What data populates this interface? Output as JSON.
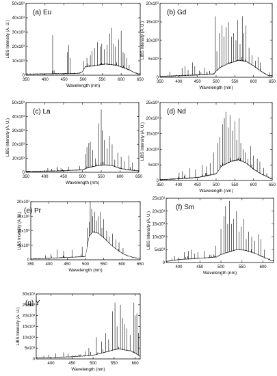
{
  "chart_data": [
    {
      "type": "line",
      "title": "(a) Eu",
      "xlabel": "Wavelength (nm)",
      "ylabel": "LIBS Intensity (A. U.)",
      "xlim": [
        350,
        650
      ],
      "ylim": [
        0,
        50000
      ],
      "xticks": [
        350,
        400,
        450,
        500,
        550,
        600,
        650
      ],
      "xtick_labels": [
        "350",
        "400",
        "450",
        "500",
        "550",
        "600",
        "650"
      ],
      "yticks": [
        0,
        10000,
        20000,
        30000,
        40000,
        50000
      ],
      "ytick_labels": [
        "0",
        "10x10³",
        "20x10³",
        "30x10³",
        "40x10³",
        "50x10³"
      ],
      "baseline": [
        [
          350,
          500
        ],
        [
          400,
          600
        ],
        [
          450,
          800
        ],
        [
          490,
          1000
        ],
        [
          500,
          2500
        ],
        [
          505,
          5500
        ],
        [
          520,
          6000
        ],
        [
          560,
          7500
        ],
        [
          590,
          6500
        ],
        [
          620,
          3500
        ],
        [
          635,
          1500
        ],
        [
          645,
          500
        ]
      ],
      "peaks": [
        [
          420,
          28000
        ],
        [
          459,
          16000
        ],
        [
          462,
          21000
        ],
        [
          466,
          12000
        ],
        [
          501,
          10000
        ],
        [
          510,
          12000
        ],
        [
          519,
          14000
        ],
        [
          523,
          17000
        ],
        [
          530,
          19000
        ],
        [
          538,
          23000
        ],
        [
          545,
          20000
        ],
        [
          549,
          22000
        ],
        [
          556,
          18000
        ],
        [
          563,
          21000
        ],
        [
          570,
          29000
        ],
        [
          575,
          33000
        ],
        [
          580,
          22000
        ],
        [
          585,
          20000
        ],
        [
          593,
          25000
        ],
        [
          600,
          31000
        ],
        [
          605,
          16000
        ],
        [
          610,
          15000
        ],
        [
          615,
          12000
        ],
        [
          621,
          7000
        ]
      ]
    },
    {
      "type": "line",
      "title": "(b) Gd",
      "xlabel": "Wavelength (nm)",
      "ylabel": "LIBS Intensity (A. U.)",
      "xlim": [
        350,
        650
      ],
      "ylim": [
        0,
        20000
      ],
      "xticks": [
        350,
        400,
        450,
        500,
        550,
        600,
        650
      ],
      "xtick_labels": [
        "350",
        "400",
        "450",
        "500",
        "550",
        "600",
        "650"
      ],
      "yticks": [
        0,
        5000,
        10000,
        15000,
        20000
      ],
      "ytick_labels": [
        "0",
        "5x10³",
        "10x10³",
        "15x10³",
        "20x10³"
      ],
      "baseline": [
        [
          350,
          100
        ],
        [
          400,
          300
        ],
        [
          450,
          500
        ],
        [
          495,
          800
        ],
        [
          500,
          1500
        ],
        [
          510,
          2500
        ],
        [
          530,
          3500
        ],
        [
          560,
          4500
        ],
        [
          580,
          4200
        ],
        [
          600,
          3000
        ],
        [
          620,
          1500
        ],
        [
          640,
          300
        ]
      ],
      "peaks": [
        [
          376,
          1500
        ],
        [
          409,
          2500
        ],
        [
          417,
          3000
        ],
        [
          425,
          2000
        ],
        [
          437,
          4000
        ],
        [
          443,
          3000
        ],
        [
          455,
          1800
        ],
        [
          468,
          2500
        ],
        [
          498,
          16500
        ],
        [
          502,
          7000
        ],
        [
          509,
          12000
        ],
        [
          516,
          14000
        ],
        [
          521,
          11000
        ],
        [
          527,
          13500
        ],
        [
          533,
          15000
        ],
        [
          541,
          11000
        ],
        [
          547,
          12000
        ],
        [
          553,
          10000
        ],
        [
          558,
          15500
        ],
        [
          564,
          9000
        ],
        [
          570,
          16500
        ],
        [
          574,
          12000
        ],
        [
          580,
          14000
        ],
        [
          588,
          8000
        ],
        [
          596,
          6000
        ],
        [
          605,
          4500
        ],
        [
          612,
          5500
        ],
        [
          618,
          4000
        ]
      ]
    },
    {
      "type": "line",
      "title": "(c) La",
      "xlabel": "Wavelength (nm)",
      "ylabel": "LIBS Intensity (A. U.)",
      "xlim": [
        350,
        650
      ],
      "ylim": [
        0,
        50000
      ],
      "xticks": [
        350,
        400,
        450,
        500,
        550,
        600,
        650
      ],
      "xtick_labels": [
        "350",
        "400",
        "450",
        "500",
        "550",
        "600",
        "650"
      ],
      "yticks": [
        0,
        10000,
        20000,
        30000,
        40000,
        50000
      ],
      "ytick_labels": [
        "0",
        "10x10³",
        "20x10³",
        "30x10³",
        "40x10³",
        "50x10³"
      ],
      "baseline": [
        [
          350,
          300
        ],
        [
          400,
          500
        ],
        [
          450,
          800
        ],
        [
          500,
          1500
        ],
        [
          515,
          3000
        ],
        [
          540,
          4500
        ],
        [
          560,
          5000
        ],
        [
          580,
          4500
        ],
        [
          600,
          2500
        ],
        [
          620,
          1500
        ],
        [
          645,
          800
        ]
      ],
      "peaks": [
        [
          408,
          3000
        ],
        [
          418,
          2500
        ],
        [
          433,
          4000
        ],
        [
          443,
          3000
        ],
        [
          463,
          4000
        ],
        [
          493,
          4500
        ],
        [
          507,
          13000
        ],
        [
          512,
          18000
        ],
        [
          517,
          21000
        ],
        [
          521,
          22000
        ],
        [
          527,
          16000
        ],
        [
          535,
          10000
        ],
        [
          544,
          35000
        ],
        [
          550,
          45000
        ],
        [
          553,
          30000
        ],
        [
          558,
          23000
        ],
        [
          566,
          17000
        ],
        [
          572,
          26000
        ],
        [
          579,
          20000
        ],
        [
          586,
          9000
        ],
        [
          594,
          14000
        ],
        [
          603,
          11000
        ],
        [
          611,
          8000
        ],
        [
          624,
          12000
        ],
        [
          633,
          7000
        ]
      ]
    },
    {
      "type": "line",
      "title": "(d) Nd",
      "xlabel": "Wavelength (nm)",
      "ylabel": "LIBS Intensity (A. U.)",
      "xlim": [
        350,
        650
      ],
      "ylim": [
        0,
        25000
      ],
      "xticks": [
        350,
        400,
        450,
        500,
        550,
        600,
        650
      ],
      "xtick_labels": [
        "350",
        "400",
        "450",
        "500",
        "550",
        "600",
        "650"
      ],
      "yticks": [
        0,
        5000,
        10000,
        15000,
        20000,
        25000
      ],
      "ytick_labels": [
        "0",
        "5x10³",
        "10x10³",
        "15x10³",
        "20x10³",
        "25x10³"
      ],
      "baseline": [
        [
          350,
          100
        ],
        [
          400,
          400
        ],
        [
          450,
          800
        ],
        [
          500,
          2000
        ],
        [
          515,
          4500
        ],
        [
          540,
          6000
        ],
        [
          560,
          6500
        ],
        [
          580,
          5500
        ],
        [
          600,
          3500
        ],
        [
          620,
          2000
        ],
        [
          645,
          600
        ]
      ],
      "peaks": [
        [
          401,
          2500
        ],
        [
          410,
          3000
        ],
        [
          417,
          2000
        ],
        [
          430,
          4000
        ],
        [
          445,
          3500
        ],
        [
          463,
          5000
        ],
        [
          474,
          4500
        ],
        [
          484,
          5500
        ],
        [
          493,
          9000
        ],
        [
          505,
          12000
        ],
        [
          510,
          14000
        ],
        [
          517,
          18000
        ],
        [
          522,
          20000
        ],
        [
          526,
          22000
        ],
        [
          532,
          17000
        ],
        [
          537,
          21000
        ],
        [
          544,
          16000
        ],
        [
          550,
          19000
        ],
        [
          555,
          13000
        ],
        [
          561,
          20000
        ],
        [
          566,
          12000
        ],
        [
          572,
          10000
        ],
        [
          578,
          9000
        ],
        [
          585,
          7000
        ],
        [
          592,
          11000
        ],
        [
          600,
          8000
        ],
        [
          610,
          7000
        ],
        [
          617,
          6000
        ],
        [
          627,
          4000
        ]
      ]
    },
    {
      "type": "line",
      "title": "(e) Pr",
      "xlabel": "Wavelength (nm)",
      "ylabel": "LIBS Intensity (A. U.)",
      "xlim": [
        350,
        650
      ],
      "ylim": [
        0,
        20000
      ],
      "xticks": [
        350,
        400,
        450,
        500,
        550,
        600,
        650
      ],
      "xtick_labels": [
        "350",
        "400",
        "450",
        "500",
        "550",
        "600",
        "650"
      ],
      "yticks": [
        0,
        5000,
        10000,
        15000,
        20000
      ],
      "ytick_labels": [
        "0",
        "5x10³",
        "10x10³",
        "15x10³",
        "20x10³"
      ],
      "baseline": [
        [
          350,
          200
        ],
        [
          400,
          400
        ],
        [
          450,
          700
        ],
        [
          500,
          1000
        ],
        [
          510,
          8000
        ],
        [
          520,
          9500
        ],
        [
          535,
          9000
        ],
        [
          550,
          7500
        ],
        [
          570,
          5000
        ],
        [
          590,
          3000
        ],
        [
          610,
          1500
        ],
        [
          630,
          700
        ],
        [
          645,
          400
        ]
      ],
      "peaks": [
        [
          390,
          1500
        ],
        [
          405,
          2000
        ],
        [
          422,
          3500
        ],
        [
          440,
          3000
        ],
        [
          463,
          3500
        ],
        [
          491,
          4500
        ],
        [
          505,
          11000
        ],
        [
          510,
          13000
        ],
        [
          513,
          20000
        ],
        [
          517,
          17500
        ],
        [
          520,
          15000
        ],
        [
          525,
          16500
        ],
        [
          530,
          13500
        ],
        [
          535,
          15000
        ],
        [
          540,
          16500
        ],
        [
          545,
          11000
        ],
        [
          550,
          14000
        ],
        [
          558,
          10000
        ],
        [
          565,
          8000
        ],
        [
          574,
          9000
        ],
        [
          583,
          7000
        ],
        [
          592,
          6000
        ],
        [
          603,
          4000
        ]
      ]
    },
    {
      "type": "line",
      "title": "(f) Sm",
      "xlabel": "Wavelength (nm)",
      "ylabel": "LIBS Intensity (A. U.)",
      "xlim": [
        370,
        625
      ],
      "ylim": [
        0,
        25000
      ],
      "xticks": [
        400,
        450,
        500,
        550,
        600
      ],
      "xtick_labels": [
        "400",
        "450",
        "500",
        "550",
        "600"
      ],
      "yticks": [
        0,
        5000,
        10000,
        15000,
        20000,
        25000
      ],
      "ytick_labels": [
        "0",
        "5x10³",
        "10x10³",
        "15x10³",
        "20x10³",
        "25x10³"
      ],
      "baseline": [
        [
          370,
          300
        ],
        [
          400,
          1000
        ],
        [
          450,
          1500
        ],
        [
          490,
          2000
        ],
        [
          500,
          3000
        ],
        [
          520,
          4000
        ],
        [
          540,
          5000
        ],
        [
          560,
          4500
        ],
        [
          580,
          3500
        ],
        [
          600,
          2000
        ],
        [
          620,
          600
        ]
      ],
      "peaks": [
        [
          384,
          1500
        ],
        [
          390,
          2500
        ],
        [
          399,
          2000
        ],
        [
          413,
          4000
        ],
        [
          423,
          4500
        ],
        [
          429,
          5000
        ],
        [
          437,
          3500
        ],
        [
          445,
          4000
        ],
        [
          460,
          4500
        ],
        [
          473,
          3000
        ],
        [
          487,
          6500
        ],
        [
          500,
          13000
        ],
        [
          507,
          18000
        ],
        [
          511,
          22000
        ],
        [
          516,
          15000
        ],
        [
          520,
          24000
        ],
        [
          525,
          15000
        ],
        [
          530,
          17000
        ],
        [
          537,
          20000
        ],
        [
          543,
          12000
        ],
        [
          548,
          14000
        ],
        [
          554,
          17000
        ],
        [
          560,
          9000
        ],
        [
          566,
          12000
        ],
        [
          573,
          10000
        ],
        [
          580,
          8500
        ],
        [
          589,
          11000
        ],
        [
          595,
          9000
        ],
        [
          603,
          5000
        ]
      ]
    },
    {
      "type": "line",
      "title": "(g) Y",
      "xlabel": "Wavelength (nm)",
      "ylabel": "LIBS Intensity (A. U.)",
      "xlim": [
        365,
        612
      ],
      "ylim": [
        0,
        30000
      ],
      "xticks": [
        400,
        450,
        500,
        550,
        600
      ],
      "xtick_labels": [
        "400",
        "450",
        "500",
        "550",
        "600"
      ],
      "yticks": [
        0,
        5000,
        10000,
        15000,
        20000,
        25000,
        30000
      ],
      "ytick_labels": [
        "0",
        "5x10³",
        "10x10³",
        "15x10³",
        "20x10³",
        "25x10³",
        "30x10³"
      ],
      "baseline": [
        [
          365,
          300
        ],
        [
          400,
          500
        ],
        [
          450,
          800
        ],
        [
          500,
          1500
        ],
        [
          520,
          2500
        ],
        [
          540,
          3500
        ],
        [
          560,
          4500
        ],
        [
          575,
          4000
        ],
        [
          590,
          3500
        ],
        [
          600,
          2500
        ],
        [
          612,
          1000
        ]
      ],
      "peaks": [
        [
          383,
          1500
        ],
        [
          395,
          2000
        ],
        [
          411,
          2500
        ],
        [
          430,
          3000
        ],
        [
          441,
          2500
        ],
        [
          467,
          2000
        ],
        [
          481,
          3500
        ],
        [
          490,
          5000
        ],
        [
          508,
          10000
        ],
        [
          520,
          8000
        ],
        [
          530,
          12000
        ],
        [
          537,
          9000
        ],
        [
          546,
          22000
        ],
        [
          552,
          26000
        ],
        [
          557,
          15000
        ],
        [
          565,
          25000
        ],
        [
          570,
          19000
        ],
        [
          575,
          16000
        ],
        [
          580,
          14000
        ],
        [
          588,
          11000
        ],
        [
          597,
          26000
        ],
        [
          600,
          20000
        ],
        [
          604,
          21000
        ],
        [
          608,
          12000
        ]
      ]
    }
  ]
}
